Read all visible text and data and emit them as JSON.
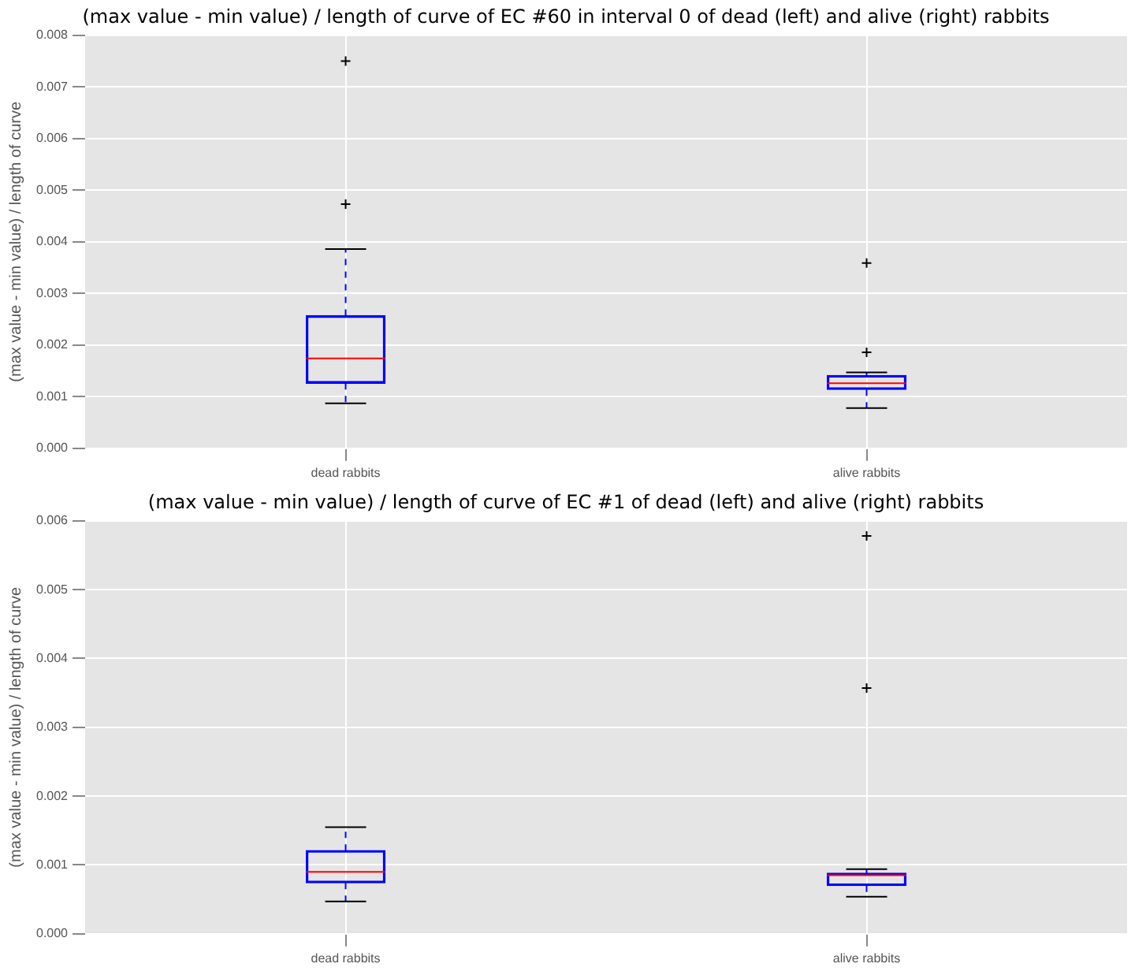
{
  "chart_data": [
    {
      "type": "box",
      "title": "(max value - min value) / length of curve of EC #60 in interval 0 of dead (left) and alive (right) rabbits",
      "ylabel": "(max value - min value) / length of curve",
      "categories": [
        "dead rabbits",
        "alive rabbits"
      ],
      "boxes": [
        {
          "low": 0.00087,
          "q1": 0.00126,
          "median": 0.00174,
          "q3": 0.00257,
          "high": 0.00386,
          "outliers": [
            0.00473,
            0.0075
          ]
        },
        {
          "low": 0.00078,
          "q1": 0.00114,
          "median": 0.00126,
          "q3": 0.00141,
          "high": 0.00147,
          "outliers": [
            0.00186,
            0.00359
          ]
        }
      ],
      "ylim": [
        0,
        0.008
      ],
      "yticks": [
        {
          "value": 0,
          "label": "0.000"
        },
        {
          "value": 0.001,
          "label": "0.001"
        },
        {
          "value": 0.002,
          "label": "0.002"
        },
        {
          "value": 0.003,
          "label": "0.003"
        },
        {
          "value": 0.004,
          "label": "0.004"
        },
        {
          "value": 0.005,
          "label": "0.005"
        },
        {
          "value": 0.006,
          "label": "0.006"
        },
        {
          "value": 0.007,
          "label": "0.007"
        },
        {
          "value": 0.008,
          "label": "0.008"
        }
      ],
      "grid": true
    },
    {
      "type": "box",
      "title": "(max value - min value) / length of curve of EC #1 of dead (left) and alive (right) rabbits",
      "ylabel": "(max value - min value) / length of curve",
      "categories": [
        "dead rabbits",
        "alive rabbits"
      ],
      "boxes": [
        {
          "low": 0.00047,
          "q1": 0.00074,
          "median": 0.0009,
          "q3": 0.00121,
          "high": 0.00155
        },
        {
          "low": 0.00054,
          "q1": 0.0007,
          "median": 0.00085,
          "q3": 0.00088,
          "high": 0.00094,
          "outliers": [
            0.00357,
            0.00578
          ]
        }
      ],
      "ylim": [
        0,
        0.006
      ],
      "yticks": [
        {
          "value": 0,
          "label": "0.000"
        },
        {
          "value": 0.001,
          "label": "0.001"
        },
        {
          "value": 0.002,
          "label": "0.002"
        },
        {
          "value": 0.003,
          "label": "0.003"
        },
        {
          "value": 0.004,
          "label": "0.004"
        },
        {
          "value": 0.005,
          "label": "0.005"
        },
        {
          "value": 0.006,
          "label": "0.006"
        }
      ],
      "grid": true
    }
  ]
}
